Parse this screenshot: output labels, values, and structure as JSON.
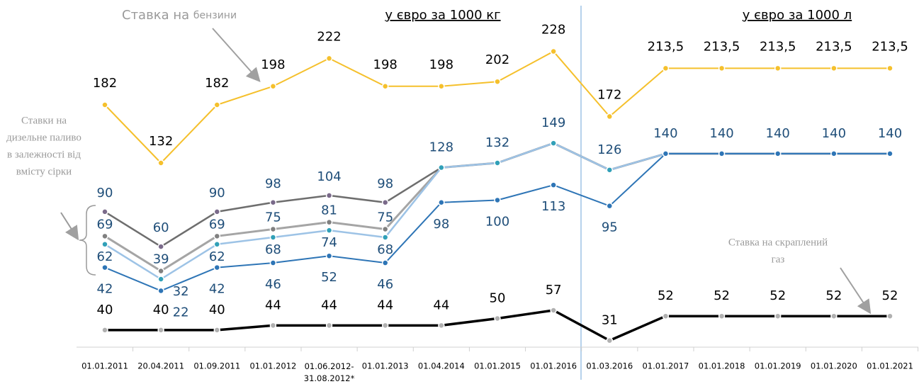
{
  "chart_data": {
    "type": "line",
    "categories": [
      "01.01.2011",
      "20.04.2011",
      "01.09.2011",
      "01.01.2012",
      "01.06.2012-31.08.2012*",
      "01.01.2013",
      "01.04.2014",
      "01.01.2015",
      "01.01.2016",
      "01.03.2016",
      "01.01.2017",
      "01.01.2018",
      "01.01.2019",
      "01.01.2020",
      "01.01.2021"
    ],
    "units_left": "у євро за 1000 кг",
    "units_right": "у євро за 1000 л",
    "annotations": [
      "Ставка на ",
      "бензини",
      "Ставки на",
      "дизельне паливо",
      "в залежності від",
      "вмісту сірки",
      "Ставка на скраплений",
      "газ"
    ],
    "series": [
      {
        "color": "#f5c02c",
        "values": [
          182,
          132,
          182,
          198,
          222,
          198,
          198,
          202,
          228,
          172,
          213.5,
          213.5,
          213.5,
          213.5,
          213.5
        ],
        "value_labels": [
          "182",
          "132",
          "182",
          "198",
          "222",
          "198",
          "198",
          "202",
          "228",
          "172",
          "213,5",
          "213,5",
          "213,5",
          "213,5",
          "213,5"
        ]
      },
      {
        "color": "#6e6e6e",
        "values": [
          90,
          60,
          90,
          98,
          104,
          98,
          128,
          132,
          149,
          126,
          140,
          140,
          140,
          140,
          140
        ]
      },
      {
        "color": "#a5a5a5",
        "values": [
          69,
          39,
          69,
          75,
          81,
          75,
          128,
          132,
          149,
          126,
          140,
          140,
          140,
          140,
          140
        ]
      },
      {
        "color": "#9dc3e6",
        "values": [
          62,
          32,
          62,
          68,
          74,
          68,
          128,
          132,
          149,
          126,
          140,
          140,
          140,
          140,
          140
        ]
      },
      {
        "color": "#2e75b6",
        "values": [
          42,
          22,
          42,
          46,
          52,
          46,
          98,
          100,
          113,
          95,
          140,
          140,
          140,
          140,
          140
        ]
      },
      {
        "color": "#000000",
        "values": [
          40,
          40,
          40,
          44,
          44,
          44,
          44,
          50,
          57,
          31,
          52,
          52,
          52,
          52,
          52
        ]
      }
    ]
  }
}
